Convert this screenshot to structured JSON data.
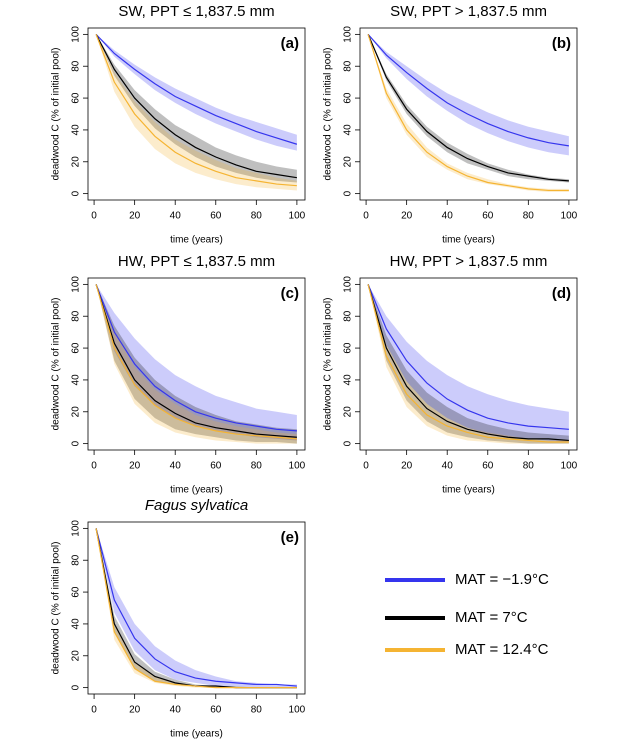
{
  "chart_data": [
    {
      "type": "line",
      "title": "SW, PPT ≤ 1,837.5 mm",
      "label": "(a)",
      "xlabel": "time (years)",
      "ylabel": "deadwood C (% of initial pool)",
      "x": [
        1,
        10,
        20,
        30,
        40,
        50,
        60,
        70,
        80,
        90,
        100
      ],
      "xlim": [
        -3,
        104
      ],
      "ylim": [
        -4,
        104
      ],
      "xticks": [
        0,
        20,
        40,
        60,
        80,
        100
      ],
      "yticks": [
        0,
        20,
        40,
        60,
        80,
        100
      ],
      "series": [
        {
          "color": "#3535ee",
          "values": [
            100,
            88,
            78,
            69,
            61,
            55,
            49,
            44,
            39,
            35,
            31
          ],
          "upper": [
            100,
            90,
            81,
            73,
            66,
            60,
            54,
            49,
            45,
            41,
            37
          ],
          "lower": [
            100,
            86,
            75,
            65,
            57,
            50,
            44,
            39,
            34,
            30,
            27
          ]
        },
        {
          "color": "#000000",
          "values": [
            100,
            78,
            60,
            47,
            37,
            29,
            23,
            18,
            14,
            12,
            10
          ],
          "upper": [
            100,
            81,
            65,
            53,
            43,
            36,
            29,
            24,
            20,
            17,
            15
          ],
          "lower": [
            100,
            74,
            55,
            41,
            31,
            23,
            17,
            13,
            10,
            8,
            7
          ]
        },
        {
          "color": "#f5b432",
          "values": [
            100,
            70,
            50,
            36,
            26,
            19,
            14,
            10,
            8,
            6,
            5
          ],
          "upper": [
            100,
            76,
            58,
            45,
            34,
            27,
            21,
            16,
            13,
            10,
            8
          ],
          "lower": [
            100,
            64,
            42,
            28,
            19,
            13,
            9,
            6,
            4,
            3,
            2
          ]
        }
      ]
    },
    {
      "type": "line",
      "title": "SW, PPT > 1,837.5 mm",
      "label": "(b)",
      "xlabel": "time (years)",
      "ylabel": "deadwood C (% of initial pool)",
      "x": [
        1,
        10,
        20,
        30,
        40,
        50,
        60,
        70,
        80,
        90,
        100
      ],
      "xlim": [
        -3,
        104
      ],
      "ylim": [
        -4,
        104
      ],
      "xticks": [
        0,
        20,
        40,
        60,
        80,
        100
      ],
      "yticks": [
        0,
        20,
        40,
        60,
        80,
        100
      ],
      "series": [
        {
          "color": "#3535ee",
          "values": [
            100,
            87,
            76,
            66,
            57,
            50,
            44,
            39,
            35,
            32,
            30
          ],
          "upper": [
            100,
            89,
            80,
            71,
            63,
            57,
            51,
            46,
            42,
            39,
            36
          ],
          "lower": [
            100,
            85,
            72,
            61,
            52,
            44,
            38,
            33,
            29,
            26,
            24
          ]
        },
        {
          "color": "#000000",
          "values": [
            100,
            73,
            53,
            39,
            29,
            22,
            17,
            13,
            11,
            9,
            8
          ],
          "upper": [
            100,
            75,
            56,
            42,
            32,
            25,
            19,
            15,
            12,
            10,
            9
          ],
          "lower": [
            100,
            71,
            50,
            36,
            26,
            19,
            15,
            11,
            9,
            8,
            7
          ]
        },
        {
          "color": "#f5b432",
          "values": [
            100,
            63,
            40,
            26,
            17,
            11,
            7,
            5,
            3,
            2,
            2
          ],
          "upper": [
            100,
            66,
            44,
            29,
            19,
            13,
            9,
            6,
            4,
            3,
            3
          ],
          "lower": [
            100,
            60,
            37,
            23,
            15,
            9,
            6,
            4,
            2,
            1,
            1
          ]
        }
      ]
    },
    {
      "type": "line",
      "title": "HW, PPT ≤ 1,837.5 mm",
      "label": "(c)",
      "xlabel": "time (years)",
      "ylabel": "deadwood C (% of initial pool)",
      "x": [
        1,
        10,
        20,
        30,
        40,
        50,
        60,
        70,
        80,
        90,
        100
      ],
      "xlim": [
        -3,
        104
      ],
      "ylim": [
        -4,
        104
      ],
      "xticks": [
        0,
        20,
        40,
        60,
        80,
        100
      ],
      "yticks": [
        0,
        20,
        40,
        60,
        80,
        100
      ],
      "series": [
        {
          "color": "#3535ee",
          "values": [
            100,
            70,
            50,
            36,
            27,
            20,
            16,
            13,
            11,
            9,
            8
          ],
          "upper": [
            100,
            82,
            66,
            53,
            43,
            36,
            30,
            26,
            22,
            20,
            18
          ],
          "lower": [
            100,
            58,
            36,
            24,
            16,
            11,
            8,
            6,
            4,
            3,
            2
          ]
        },
        {
          "color": "#000000",
          "values": [
            100,
            63,
            40,
            27,
            19,
            13,
            10,
            8,
            6,
            5,
            4
          ],
          "upper": [
            100,
            74,
            54,
            40,
            30,
            23,
            18,
            14,
            12,
            10,
            9
          ],
          "lower": [
            100,
            52,
            28,
            16,
            9,
            6,
            4,
            2,
            1,
            1,
            0
          ]
        },
        {
          "color": "#f5b432",
          "values": [
            100,
            60,
            37,
            24,
            16,
            11,
            8,
            6,
            5,
            4,
            3
          ],
          "upper": [
            100,
            70,
            48,
            34,
            25,
            18,
            14,
            11,
            9,
            7,
            6
          ],
          "lower": [
            100,
            50,
            25,
            13,
            7,
            4,
            2,
            1,
            0,
            0,
            0
          ]
        }
      ]
    },
    {
      "type": "line",
      "title": "HW, PPT > 1,837.5 mm",
      "label": "(d)",
      "xlabel": "time (years)",
      "ylabel": "deadwood C (% of initial pool)",
      "x": [
        1,
        10,
        20,
        30,
        40,
        50,
        60,
        70,
        80,
        90,
        100
      ],
      "xlim": [
        -3,
        104
      ],
      "ylim": [
        -4,
        104
      ],
      "xticks": [
        0,
        20,
        40,
        60,
        80,
        100
      ],
      "yticks": [
        0,
        20,
        40,
        60,
        80,
        100
      ],
      "series": [
        {
          "color": "#3535ee",
          "values": [
            100,
            72,
            52,
            38,
            28,
            21,
            16,
            13,
            11,
            10,
            9
          ],
          "upper": [
            100,
            80,
            64,
            52,
            43,
            36,
            31,
            27,
            24,
            22,
            20
          ],
          "lower": [
            100,
            62,
            39,
            25,
            16,
            10,
            6,
            4,
            3,
            2,
            1
          ]
        },
        {
          "color": "#000000",
          "values": [
            100,
            60,
            36,
            22,
            14,
            9,
            6,
            4,
            3,
            3,
            2
          ],
          "upper": [
            100,
            68,
            46,
            32,
            23,
            16,
            12,
            9,
            7,
            6,
            5
          ],
          "lower": [
            100,
            52,
            27,
            14,
            7,
            4,
            2,
            1,
            0,
            0,
            0
          ]
        },
        {
          "color": "#f5b432",
          "values": [
            100,
            55,
            31,
            18,
            11,
            7,
            4,
            3,
            2,
            1,
            1
          ],
          "upper": [
            100,
            62,
            39,
            25,
            16,
            10,
            7,
            5,
            3,
            2,
            2
          ],
          "lower": [
            100,
            48,
            23,
            11,
            5,
            2,
            1,
            0,
            0,
            0,
            0
          ]
        }
      ]
    },
    {
      "type": "line",
      "title": "Fagus sylvatica",
      "label": "(e)",
      "xlabel": "time (years)",
      "ylabel": "deadwood C (% of initial pool)",
      "x": [
        1,
        10,
        20,
        30,
        40,
        50,
        60,
        70,
        80,
        90,
        100
      ],
      "xlim": [
        -3,
        104
      ],
      "ylim": [
        -4,
        104
      ],
      "xticks": [
        0,
        20,
        40,
        60,
        80,
        100
      ],
      "yticks": [
        0,
        20,
        40,
        60,
        80,
        100
      ],
      "series": [
        {
          "color": "#3535ee",
          "values": [
            100,
            55,
            31,
            18,
            10,
            6,
            4,
            3,
            2,
            2,
            1
          ],
          "upper": [
            100,
            63,
            40,
            26,
            17,
            11,
            7,
            4,
            3,
            2,
            2
          ],
          "lower": [
            100,
            47,
            23,
            11,
            5,
            3,
            1,
            1,
            0,
            0,
            0
          ]
        },
        {
          "color": "#000000",
          "values": [
            100,
            40,
            16,
            7,
            3,
            1,
            1,
            0,
            0,
            0,
            0
          ],
          "upper": [
            100,
            45,
            21,
            10,
            5,
            2,
            1,
            1,
            0,
            0,
            0
          ],
          "lower": [
            100,
            35,
            12,
            4,
            2,
            1,
            0,
            0,
            0,
            0,
            0
          ]
        },
        {
          "color": "#f5b432",
          "values": [
            100,
            35,
            12,
            4,
            2,
            1,
            0,
            0,
            0,
            0,
            0
          ],
          "upper": [
            100,
            40,
            16,
            7,
            3,
            1,
            1,
            0,
            0,
            0,
            0
          ],
          "lower": [
            100,
            30,
            9,
            3,
            1,
            0,
            0,
            0,
            0,
            0,
            0
          ]
        }
      ]
    }
  ],
  "legend": [
    {
      "name": "MAT = −1.9°C",
      "color": "#3535ee"
    },
    {
      "name": "MAT = 7°C",
      "color": "#000000"
    },
    {
      "name": "MAT = 12.4°C",
      "color": "#f5b432"
    }
  ]
}
